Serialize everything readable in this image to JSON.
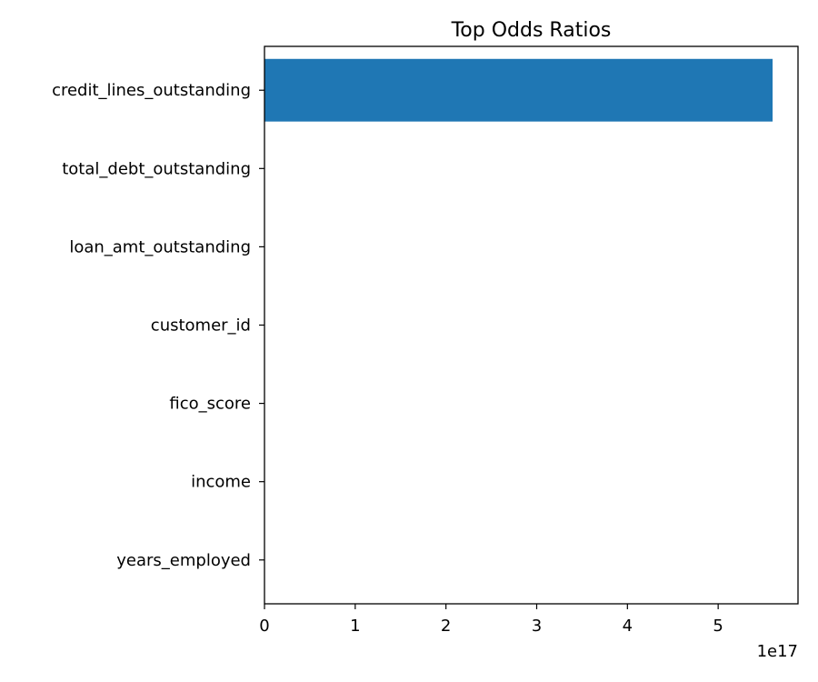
{
  "chart_data": {
    "type": "bar",
    "orientation": "horizontal",
    "title": "Top Odds Ratios",
    "xlabel": "",
    "ylabel": "",
    "categories": [
      "credit_lines_outstanding",
      "total_debt_outstanding",
      "loan_amt_outstanding",
      "customer_id",
      "fico_score",
      "income",
      "years_employed"
    ],
    "values": [
      5.6e+17,
      0,
      0,
      0,
      0,
      0,
      0
    ],
    "xlim": [
      0,
      5.88e+17
    ],
    "x_ticks": [
      0,
      1e+17,
      2e+17,
      3e+17,
      4e+17,
      5e+17
    ],
    "x_tick_labels": [
      "0",
      "1",
      "2",
      "3",
      "4",
      "5"
    ],
    "x_offset_label": "1e17",
    "bar_color": "#1f77b4",
    "grid": false,
    "legend": null
  }
}
